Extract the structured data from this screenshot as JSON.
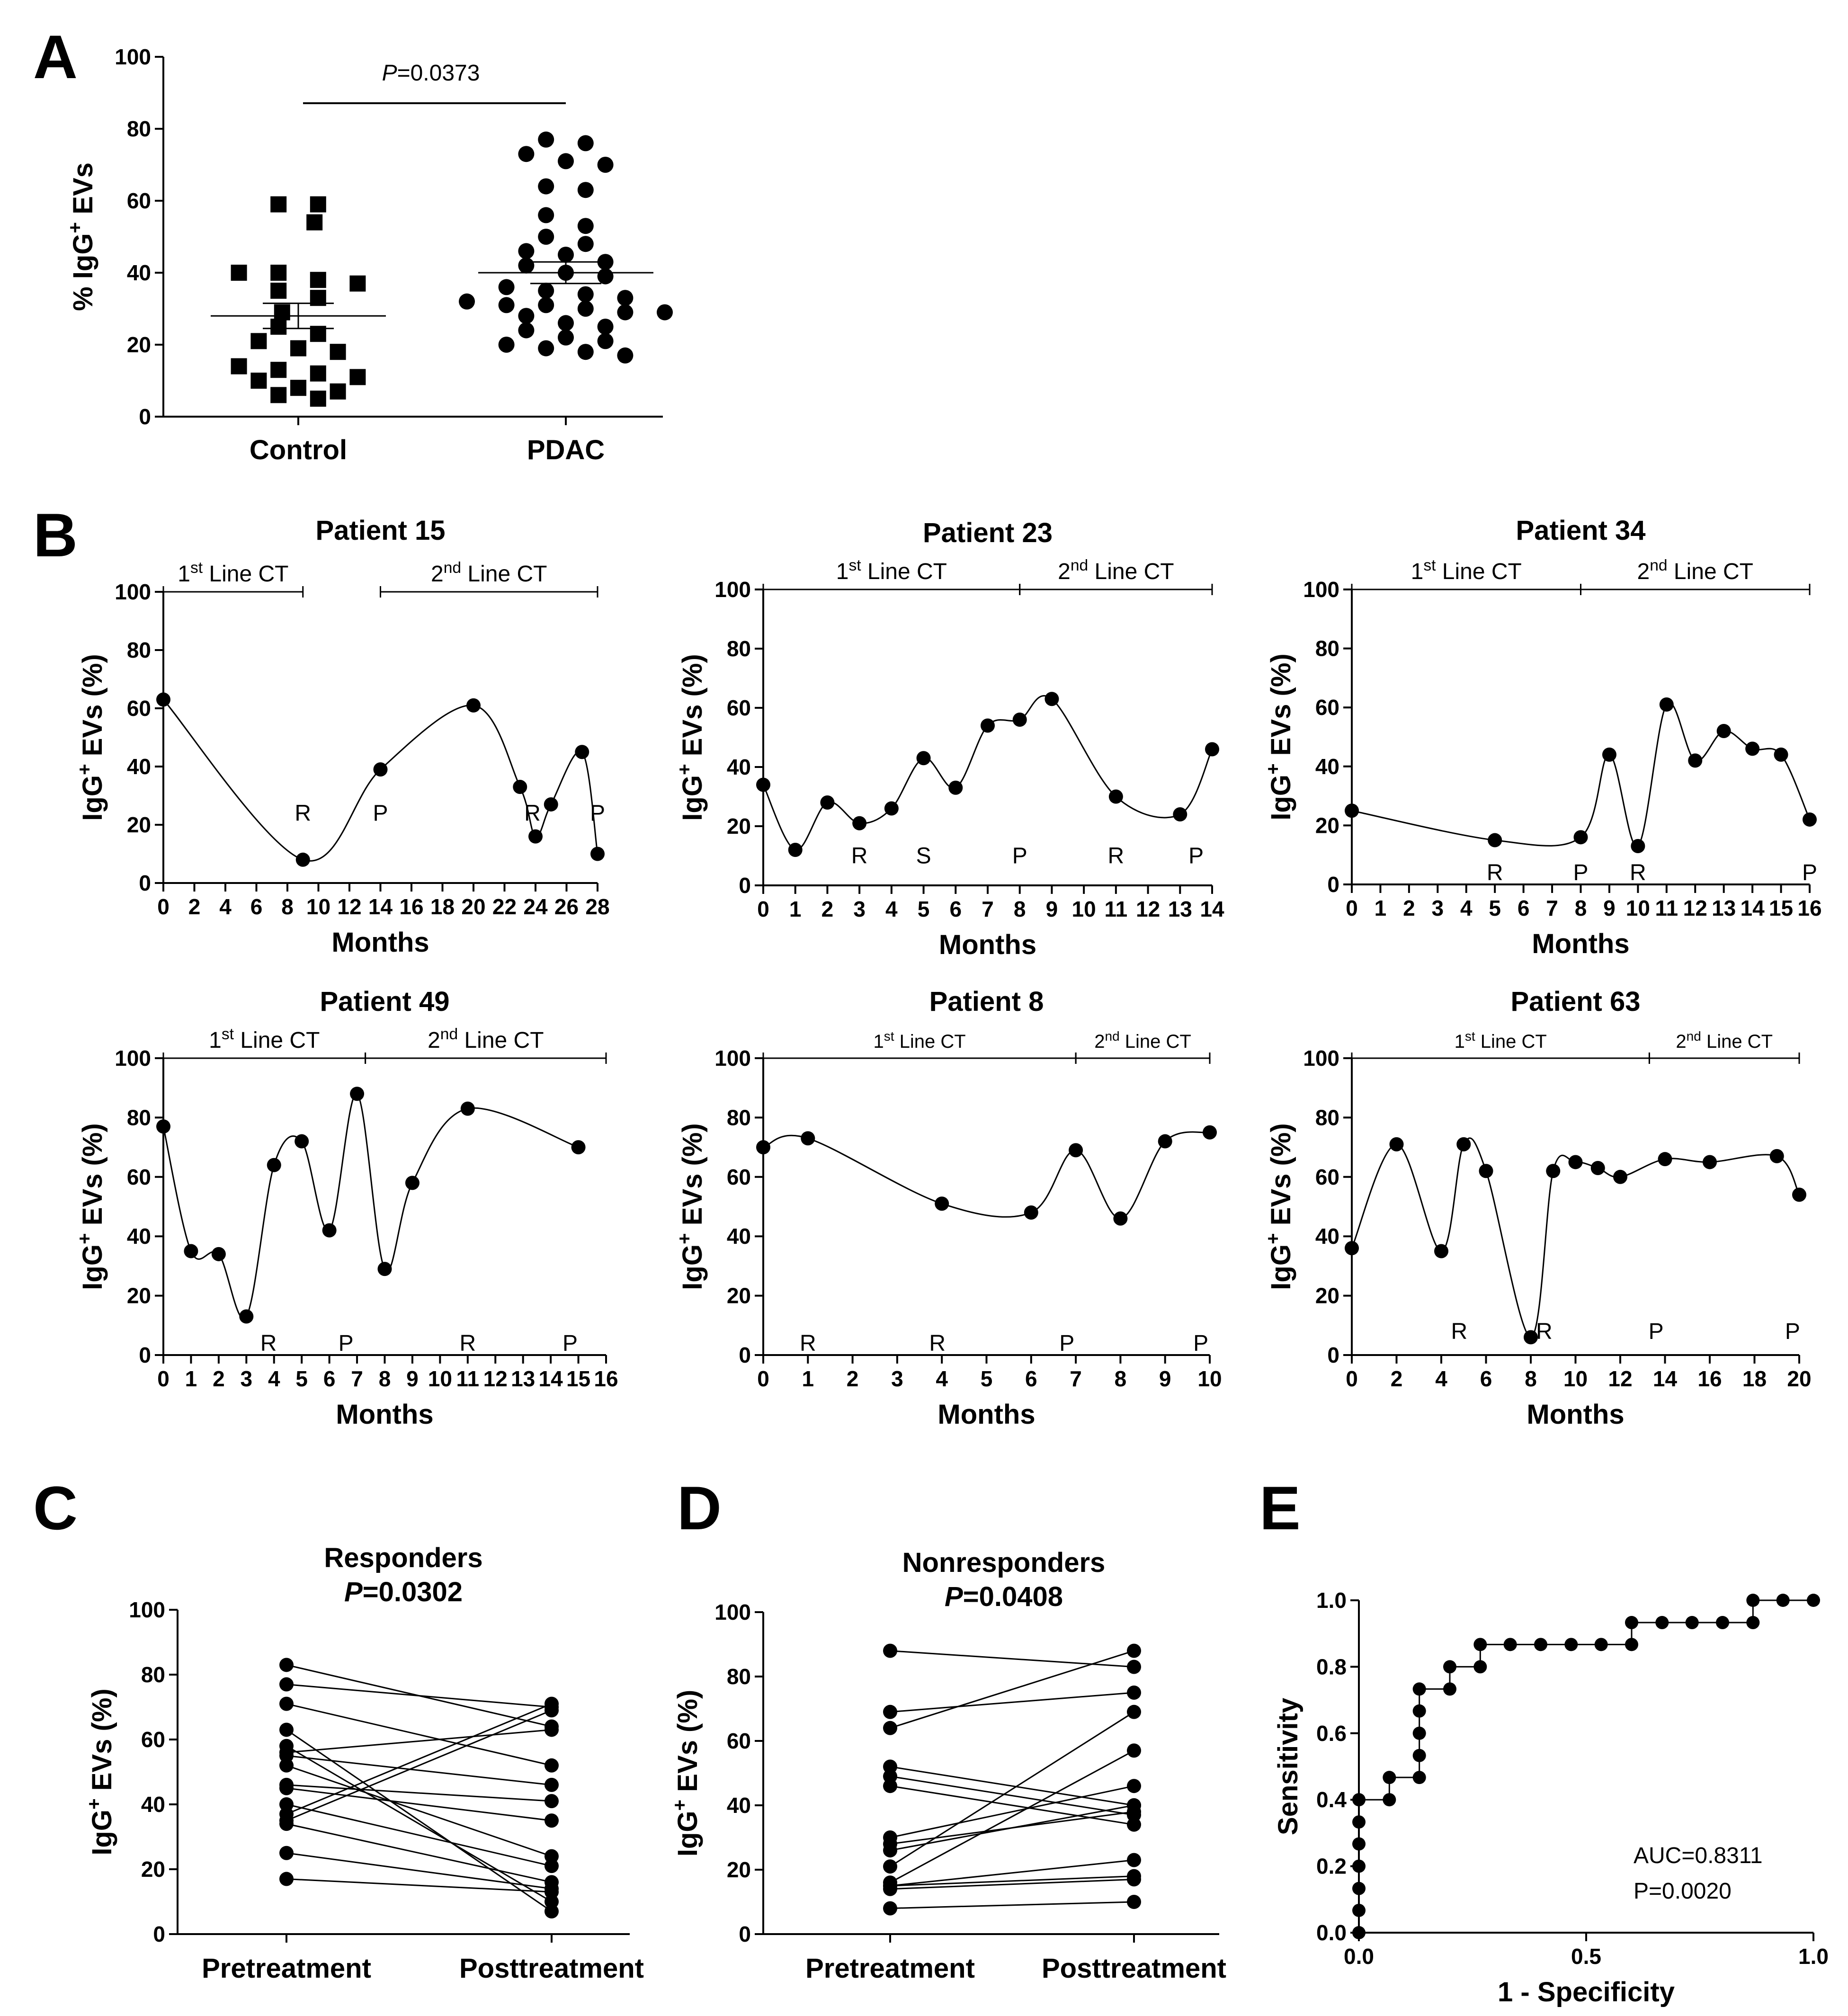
{
  "chart_data": [
    {
      "panel": "A",
      "type": "scatter",
      "ylabel": "% IgG+ EVs",
      "ylim": [
        0,
        100
      ],
      "yticks": [
        "0",
        "20",
        "40",
        "60",
        "80",
        "100"
      ],
      "categories": [
        "Control",
        "PDAC"
      ],
      "significance": {
        "label": "P",
        "value": "=0.0373"
      },
      "series": [
        {
          "name": "Control",
          "marker": "square",
          "mean": 28,
          "sem_low": 24.5,
          "sem_high": 31.5,
          "values": [
            59,
            59,
            54,
            40,
            40,
            38,
            37,
            35,
            33,
            29,
            25,
            23,
            21,
            19,
            18,
            14,
            13,
            12,
            11,
            10,
            8,
            7,
            6,
            5
          ]
        },
        {
          "name": "PDAC",
          "marker": "circle",
          "mean": 40,
          "sem_low": 37,
          "sem_high": 43,
          "values": [
            77,
            76,
            73,
            71,
            70,
            64,
            63,
            56,
            53,
            50,
            48,
            46,
            45,
            43,
            42,
            40,
            39,
            36,
            35,
            34,
            33,
            32,
            31,
            31,
            30,
            29,
            29,
            28,
            26,
            25,
            24,
            22,
            21,
            20,
            19,
            18,
            17
          ]
        }
      ]
    },
    {
      "panel": "B",
      "type": "line",
      "title": "Patient 15",
      "xlabel": "Months",
      "ylabel": "IgG+ EVs (%)",
      "xlim": [
        0,
        28
      ],
      "ylim": [
        0,
        100
      ],
      "xticks": [
        "0",
        "2",
        "4",
        "6",
        "8",
        "10",
        "12",
        "14",
        "16",
        "18",
        "20",
        "22",
        "24",
        "26",
        "28"
      ],
      "yticks": [
        "0",
        "20",
        "40",
        "60",
        "80",
        "100"
      ],
      "lines": [
        {
          "line": "1",
          "sup": "st",
          "text": " Line CT",
          "from": 0,
          "to": 9
        },
        {
          "line": "2",
          "sup": "nd",
          "text": " Line CT",
          "from": 14,
          "to": 28
        }
      ],
      "x": [
        0,
        9,
        14,
        20,
        23,
        24,
        25,
        27,
        28
      ],
      "y": [
        63,
        8,
        39,
        61,
        33,
        16,
        27,
        45,
        10
      ],
      "annotations": [
        {
          "text": "R",
          "x": 9,
          "y": 24
        },
        {
          "text": "P",
          "x": 14,
          "y": 24
        },
        {
          "text": "R",
          "x": 23.8,
          "y": 24
        },
        {
          "text": "P",
          "x": 28,
          "y": 24
        }
      ]
    },
    {
      "panel": "B",
      "type": "line",
      "title": "Patient 23",
      "xlabel": "Months",
      "ylabel": "IgG+ EVs (%)",
      "xlim": [
        0,
        14
      ],
      "ylim": [
        0,
        100
      ],
      "xticks": [
        "0",
        "1",
        "2",
        "3",
        "4",
        "5",
        "6",
        "7",
        "8",
        "9",
        "10",
        "11",
        "12",
        "13",
        "14"
      ],
      "yticks": [
        "0",
        "20",
        "40",
        "60",
        "80",
        "100"
      ],
      "lines": [
        {
          "line": "1",
          "sup": "st",
          "text": " Line CT",
          "from": 0,
          "to": 8
        },
        {
          "line": "2",
          "sup": "nd",
          "text": " Line CT",
          "from": 8,
          "to": 14
        }
      ],
      "x": [
        0,
        1,
        2,
        3,
        4,
        5,
        6,
        7,
        8,
        9,
        11,
        13,
        14
      ],
      "y": [
        34,
        12,
        28,
        21,
        26,
        43,
        33,
        54,
        56,
        63,
        30,
        24,
        46
      ],
      "annotations": [
        {
          "text": "R",
          "x": 3,
          "y": 10
        },
        {
          "text": "S",
          "x": 5,
          "y": 10
        },
        {
          "text": "P",
          "x": 8,
          "y": 10
        },
        {
          "text": "R",
          "x": 11,
          "y": 10
        },
        {
          "text": "P",
          "x": 13.5,
          "y": 10
        }
      ]
    },
    {
      "panel": "B",
      "type": "line",
      "title": "Patient 34",
      "xlabel": "Months",
      "ylabel": "IgG+ EVs (%)",
      "xlim": [
        0,
        16
      ],
      "ylim": [
        0,
        100
      ],
      "xticks": [
        "0",
        "1",
        "2",
        "3",
        "4",
        "5",
        "6",
        "7",
        "8",
        "9",
        "10",
        "11",
        "12",
        "13",
        "14",
        "15",
        "16"
      ],
      "yticks": [
        "0",
        "20",
        "40",
        "60",
        "80",
        "100"
      ],
      "lines": [
        {
          "line": "1",
          "sup": "st",
          "text": " Line CT",
          "from": 0,
          "to": 8
        },
        {
          "line": "2",
          "sup": "nd",
          "text": " Line CT",
          "from": 8,
          "to": 16
        }
      ],
      "x": [
        0,
        5,
        8,
        9,
        10,
        11,
        12,
        13,
        14,
        15,
        16
      ],
      "y": [
        25,
        15,
        16,
        44,
        13,
        61,
        42,
        52,
        46,
        44,
        22
      ],
      "annotations": [
        {
          "text": "R",
          "x": 5,
          "y": 4
        },
        {
          "text": "P",
          "x": 8,
          "y": 4
        },
        {
          "text": "R",
          "x": 10,
          "y": 4
        },
        {
          "text": "P",
          "x": 16,
          "y": 4
        }
      ]
    },
    {
      "panel": "B",
      "type": "line",
      "title": "Patient 49",
      "xlabel": "Months",
      "ylabel": "IgG+ EVs (%)",
      "xlim": [
        0,
        16
      ],
      "ylim": [
        0,
        100
      ],
      "xticks": [
        "0",
        "1",
        "2",
        "3",
        "4",
        "5",
        "6",
        "7",
        "8",
        "9",
        "10",
        "11",
        "12",
        "13",
        "14",
        "15",
        "16"
      ],
      "yticks": [
        "0",
        "20",
        "40",
        "60",
        "80",
        "100"
      ],
      "lines": [
        {
          "line": "1",
          "sup": "st",
          "text": " Line CT",
          "from": 0,
          "to": 7.3
        },
        {
          "line": "2",
          "sup": "nd",
          "text": " Line CT",
          "from": 7.3,
          "to": 16
        }
      ],
      "x": [
        0,
        1,
        2,
        3,
        4,
        5,
        6,
        7,
        8,
        9,
        11,
        15
      ],
      "y": [
        77,
        35,
        34,
        13,
        64,
        72,
        42,
        88,
        29,
        58,
        83,
        70
      ],
      "annotations": [
        {
          "text": "R",
          "x": 3.8,
          "y": 4
        },
        {
          "text": "P",
          "x": 6.6,
          "y": 4
        },
        {
          "text": "R",
          "x": 11,
          "y": 4
        },
        {
          "text": "P",
          "x": 14.7,
          "y": 4
        }
      ]
    },
    {
      "panel": "B",
      "type": "line",
      "title": "Patient 8",
      "xlabel": "Months",
      "ylabel": "IgG+ EVs (%)",
      "xlim": [
        0,
        10
      ],
      "ylim": [
        0,
        100
      ],
      "xticks": [
        "0",
        "1",
        "2",
        "3",
        "4",
        "5",
        "6",
        "7",
        "8",
        "9",
        "10"
      ],
      "yticks": [
        "0",
        "20",
        "40",
        "60",
        "80",
        "100"
      ],
      "lines": [
        {
          "line": "1",
          "sup": "st",
          "text": " Line CT",
          "from": 0,
          "to": 7
        },
        {
          "line": "2",
          "sup": "nd",
          "text": " Line CT",
          "from": 7,
          "to": 10
        }
      ],
      "x": [
        0,
        1,
        4,
        6,
        7,
        8,
        9,
        10
      ],
      "y": [
        70,
        73,
        51,
        48,
        69,
        46,
        72,
        75
      ],
      "annotations": [
        {
          "text": "R",
          "x": 1,
          "y": 4
        },
        {
          "text": "R",
          "x": 3.9,
          "y": 4
        },
        {
          "text": "P",
          "x": 6.8,
          "y": 4
        },
        {
          "text": "P",
          "x": 9.8,
          "y": 4
        }
      ]
    },
    {
      "panel": "B",
      "type": "line",
      "title": "Patient 63",
      "xlabel": "Months",
      "ylabel": "IgG+ EVs (%)",
      "xlim": [
        0,
        20
      ],
      "ylim": [
        0,
        100
      ],
      "xticks": [
        "0",
        "2",
        "4",
        "6",
        "8",
        "10",
        "12",
        "14",
        "16",
        "18",
        "20"
      ],
      "yticks": [
        "0",
        "20",
        "40",
        "60",
        "80",
        "100"
      ],
      "lines": [
        {
          "line": "1",
          "sup": "st",
          "text": " Line CT",
          "from": 0,
          "to": 13.3
        },
        {
          "line": "2",
          "sup": "nd",
          "text": " Line CT",
          "from": 13.3,
          "to": 20
        }
      ],
      "x": [
        0,
        2,
        4,
        5,
        6,
        8,
        9,
        10,
        11,
        12,
        14,
        16,
        19,
        20
      ],
      "y": [
        36,
        71,
        35,
        71,
        62,
        6,
        62,
        65,
        63,
        60,
        66,
        65,
        67,
        54
      ],
      "annotations": [
        {
          "text": "R",
          "x": 4.8,
          "y": 8
        },
        {
          "text": "R",
          "x": 8.6,
          "y": 8
        },
        {
          "text": "P",
          "x": 13.6,
          "y": 8
        },
        {
          "text": "P",
          "x": 19.7,
          "y": 8
        }
      ]
    },
    {
      "panel": "C",
      "type": "line",
      "title": "Responders",
      "significance": {
        "label": "P",
        "value": "=0.0302"
      },
      "ylabel": "IgG+ EVs (%)",
      "ylim": [
        0,
        100
      ],
      "yticks": [
        "0",
        "20",
        "40",
        "60",
        "80",
        "100"
      ],
      "categories": [
        "Pretreatment",
        "Posttreatment"
      ],
      "pairs": [
        [
          83,
          64
        ],
        [
          77,
          70
        ],
        [
          71,
          52
        ],
        [
          63,
          7
        ],
        [
          58,
          10
        ],
        [
          56,
          63
        ],
        [
          55,
          46
        ],
        [
          52,
          24
        ],
        [
          46,
          41
        ],
        [
          45,
          35
        ],
        [
          40,
          21
        ],
        [
          37,
          71
        ],
        [
          35,
          69
        ],
        [
          34,
          16
        ],
        [
          25,
          14
        ],
        [
          17,
          13
        ]
      ]
    },
    {
      "panel": "D",
      "type": "line",
      "title": "Nonresponders",
      "significance": {
        "label": "P",
        "value": "=0.0408"
      },
      "ylabel": "IgG+ EVs (%)",
      "ylim": [
        0,
        100
      ],
      "yticks": [
        "0",
        "20",
        "40",
        "60",
        "80",
        "100"
      ],
      "categories": [
        "Pretreatment",
        "Posttreatment"
      ],
      "pairs": [
        [
          88,
          83
        ],
        [
          69,
          75
        ],
        [
          64,
          88
        ],
        [
          52,
          40
        ],
        [
          49,
          37
        ],
        [
          46,
          34
        ],
        [
          30,
          46
        ],
        [
          28,
          38
        ],
        [
          26,
          40
        ],
        [
          21,
          69
        ],
        [
          16,
          57
        ],
        [
          15,
          23
        ],
        [
          15,
          18
        ],
        [
          14,
          17
        ],
        [
          8,
          10
        ]
      ]
    },
    {
      "panel": "E",
      "type": "line",
      "xlabel": "1 - Specificity",
      "ylabel": "Sensitivity",
      "xlim": [
        0,
        1
      ],
      "ylim": [
        0,
        1
      ],
      "xticks": [
        "0.0",
        "0.5",
        "1.0"
      ],
      "yticks": [
        "0.0",
        "0.2",
        "0.4",
        "0.6",
        "0.8",
        "1.0"
      ],
      "auc_text": "AUC=0.8311",
      "p_text": "P=0.0020",
      "x": [
        0,
        0,
        0,
        0,
        0,
        0,
        0,
        0.067,
        0.067,
        0.133,
        0.133,
        0.133,
        0.133,
        0.133,
        0.2,
        0.2,
        0.267,
        0.267,
        0.333,
        0.4,
        0.467,
        0.533,
        0.6,
        0.6,
        0.667,
        0.733,
        0.8,
        0.867,
        0.867,
        0.933,
        1.0
      ],
      "y": [
        0,
        0.067,
        0.133,
        0.2,
        0.267,
        0.333,
        0.4,
        0.4,
        0.467,
        0.467,
        0.533,
        0.6,
        0.667,
        0.733,
        0.733,
        0.8,
        0.8,
        0.867,
        0.867,
        0.867,
        0.867,
        0.867,
        0.867,
        0.933,
        0.933,
        0.933,
        0.933,
        0.933,
        1.0,
        1.0,
        1.0
      ]
    }
  ],
  "panel_letters": [
    "A",
    "B",
    "C",
    "D",
    "E"
  ]
}
